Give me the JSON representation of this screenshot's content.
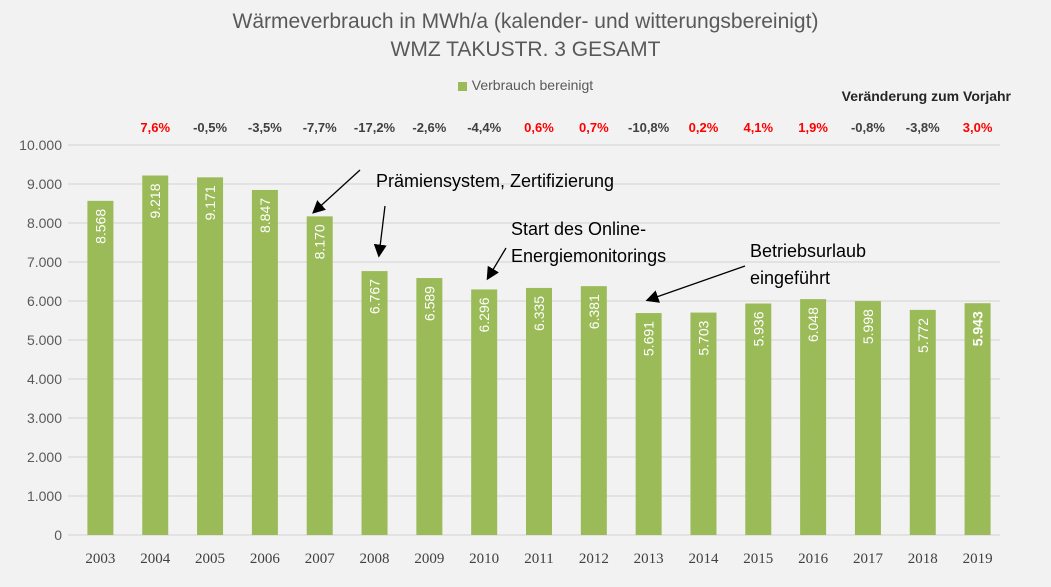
{
  "chart_data": {
    "type": "bar",
    "title": "Wärmeverbrauch in MWh/a (kalender- und witterungsbereinigt)",
    "subtitle": "WMZ TAKUSTR. 3 GESAMT",
    "legend": {
      "entries": [
        "Verbrauch bereinigt"
      ],
      "placement": "top"
    },
    "categories": [
      "2003",
      "2004",
      "2005",
      "2006",
      "2007",
      "2008",
      "2009",
      "2010",
      "2011",
      "2012",
      "2013",
      "2014",
      "2015",
      "2016",
      "2017",
      "2018",
      "2019"
    ],
    "series": [
      {
        "name": "Verbrauch bereinigt",
        "color": "#9bbb59",
        "values": [
          8568,
          9218,
          9171,
          8847,
          8170,
          6767,
          6589,
          6296,
          6335,
          6381,
          5691,
          5703,
          5936,
          6048,
          5998,
          5772,
          5943
        ],
        "labels": [
          "8.568",
          "9.218",
          "9.171",
          "8.847",
          "8.170",
          "6.767",
          "6.589",
          "6.296",
          "6.335",
          "6.381",
          "5.691",
          "5.703",
          "5.936",
          "6.048",
          "5.998",
          "5.772",
          "5.943"
        ]
      }
    ],
    "ylim": [
      0,
      10000
    ],
    "yticks": [
      "0",
      "1.000",
      "2.000",
      "3.000",
      "4.000",
      "5.000",
      "6.000",
      "7.000",
      "8.000",
      "9.000",
      "10.000"
    ],
    "grid": true,
    "change_header": "Veränderung zum Vorjahr",
    "changes": [
      "7,6%",
      "-0,5%",
      "-3,5%",
      "-7,7%",
      "-17,2%",
      "-2,6%",
      "-4,4%",
      "0,6%",
      "0,7%",
      "-10,8%",
      "0,2%",
      "4,1%",
      "1,9%",
      "-0,8%",
      "-3,8%",
      "3,0%"
    ],
    "colors": {
      "increase": "#ff0000",
      "decrease": "#404040"
    },
    "annotations": [
      {
        "lines": [
          "Prämiensystem, Zertifizierung"
        ],
        "targets": [
          "2007",
          "2008"
        ]
      },
      {
        "lines": [
          "Start des Online-",
          "Energiemonitorings"
        ],
        "targets": [
          "2010"
        ]
      },
      {
        "lines": [
          "Betriebsurlaub",
          "eingeführt"
        ],
        "targets": [
          "2013"
        ]
      }
    ]
  }
}
